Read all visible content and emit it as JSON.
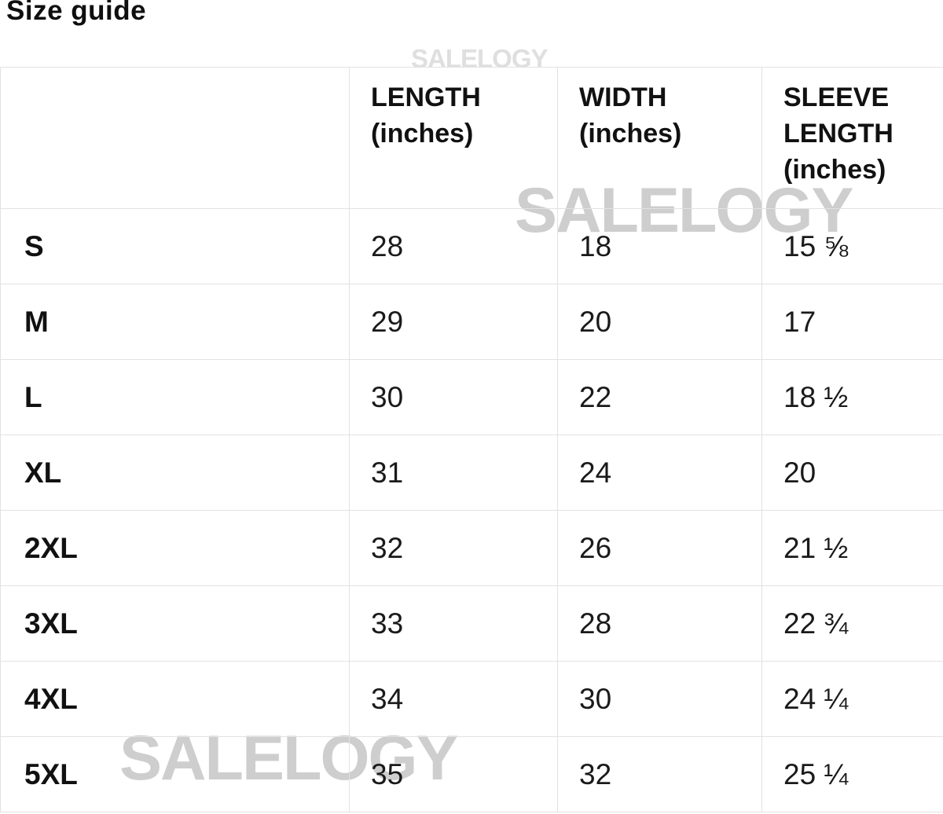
{
  "page": {
    "title": "Size guide"
  },
  "watermark": {
    "text": "SALELOGY"
  },
  "colors": {
    "text": "#1a1a1a",
    "border": "#e2e2e2",
    "watermark_large": "#cecece",
    "watermark_small": "#dfdfdf",
    "background": "#ffffff"
  },
  "size_table": {
    "headers": {
      "size": "",
      "length": "LENGTH\n(inches)",
      "width": "WIDTH\n(inches)",
      "sleeve": "SLEEVE\nLENGTH\n(inches)"
    },
    "rows": [
      {
        "size": "S",
        "length": "28",
        "width": "18",
        "sleeve": "15 ⅝"
      },
      {
        "size": "M",
        "length": "29",
        "width": "20",
        "sleeve": "17"
      },
      {
        "size": "L",
        "length": "30",
        "width": "22",
        "sleeve": "18 ½"
      },
      {
        "size": "XL",
        "length": "31",
        "width": "24",
        "sleeve": "20"
      },
      {
        "size": "2XL",
        "length": "32",
        "width": "26",
        "sleeve": "21 ½"
      },
      {
        "size": "3XL",
        "length": "33",
        "width": "28",
        "sleeve": "22 ¾"
      },
      {
        "size": "4XL",
        "length": "34",
        "width": "30",
        "sleeve": "24 ¼"
      },
      {
        "size": "5XL",
        "length": "35",
        "width": "32",
        "sleeve": "25 ¼"
      }
    ]
  }
}
